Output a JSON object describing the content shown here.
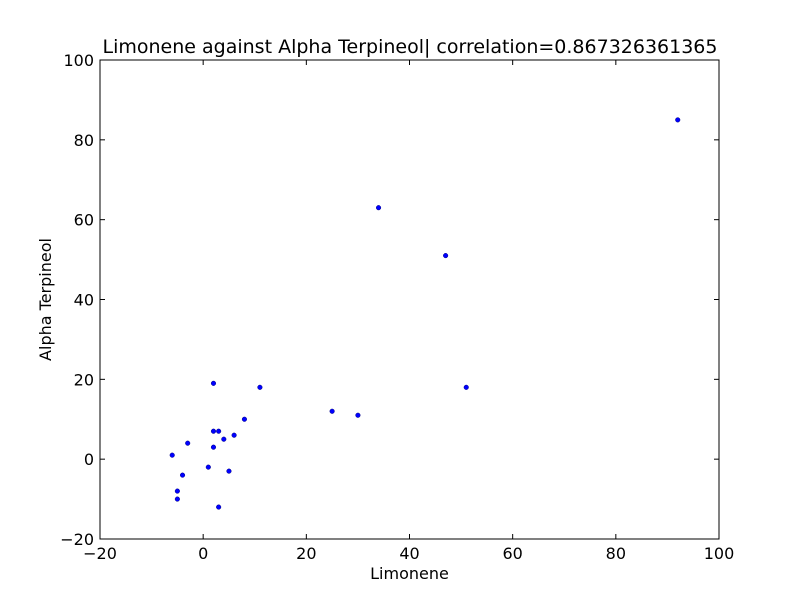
{
  "chart_data": {
    "type": "scatter",
    "title": "Limonene against Alpha Terpineol| correlation=0.867326361365",
    "xlabel": "Limonene",
    "ylabel": "Alpha Terpineol",
    "xlim": [
      -20,
      100
    ],
    "ylim": [
      -20,
      100
    ],
    "xticks": [
      -20,
      0,
      20,
      40,
      60,
      80,
      100
    ],
    "yticks": [
      -20,
      0,
      20,
      40,
      60,
      80,
      100
    ],
    "xtick_labels": [
      "−20",
      "0",
      "20",
      "40",
      "60",
      "80",
      "100"
    ],
    "ytick_labels": [
      "−20",
      "0",
      "20",
      "40",
      "60",
      "80",
      "100"
    ],
    "grid": false,
    "legend": "none",
    "marker_color": "#0000ff",
    "series": [
      {
        "points": [
          [
            92,
            85
          ],
          [
            34,
            63
          ],
          [
            47,
            51
          ],
          [
            2,
            19
          ],
          [
            11,
            18
          ],
          [
            51,
            18
          ],
          [
            25,
            12
          ],
          [
            30,
            11
          ],
          [
            8,
            10
          ],
          [
            2,
            7
          ],
          [
            3,
            7
          ],
          [
            6,
            6
          ],
          [
            4,
            5
          ],
          [
            -3,
            4
          ],
          [
            2,
            3
          ],
          [
            -6,
            1
          ],
          [
            1,
            -2
          ],
          [
            5,
            -3
          ],
          [
            -4,
            -4
          ],
          [
            -5,
            -8
          ],
          [
            -5,
            -10
          ],
          [
            3,
            -12
          ]
        ]
      }
    ]
  }
}
